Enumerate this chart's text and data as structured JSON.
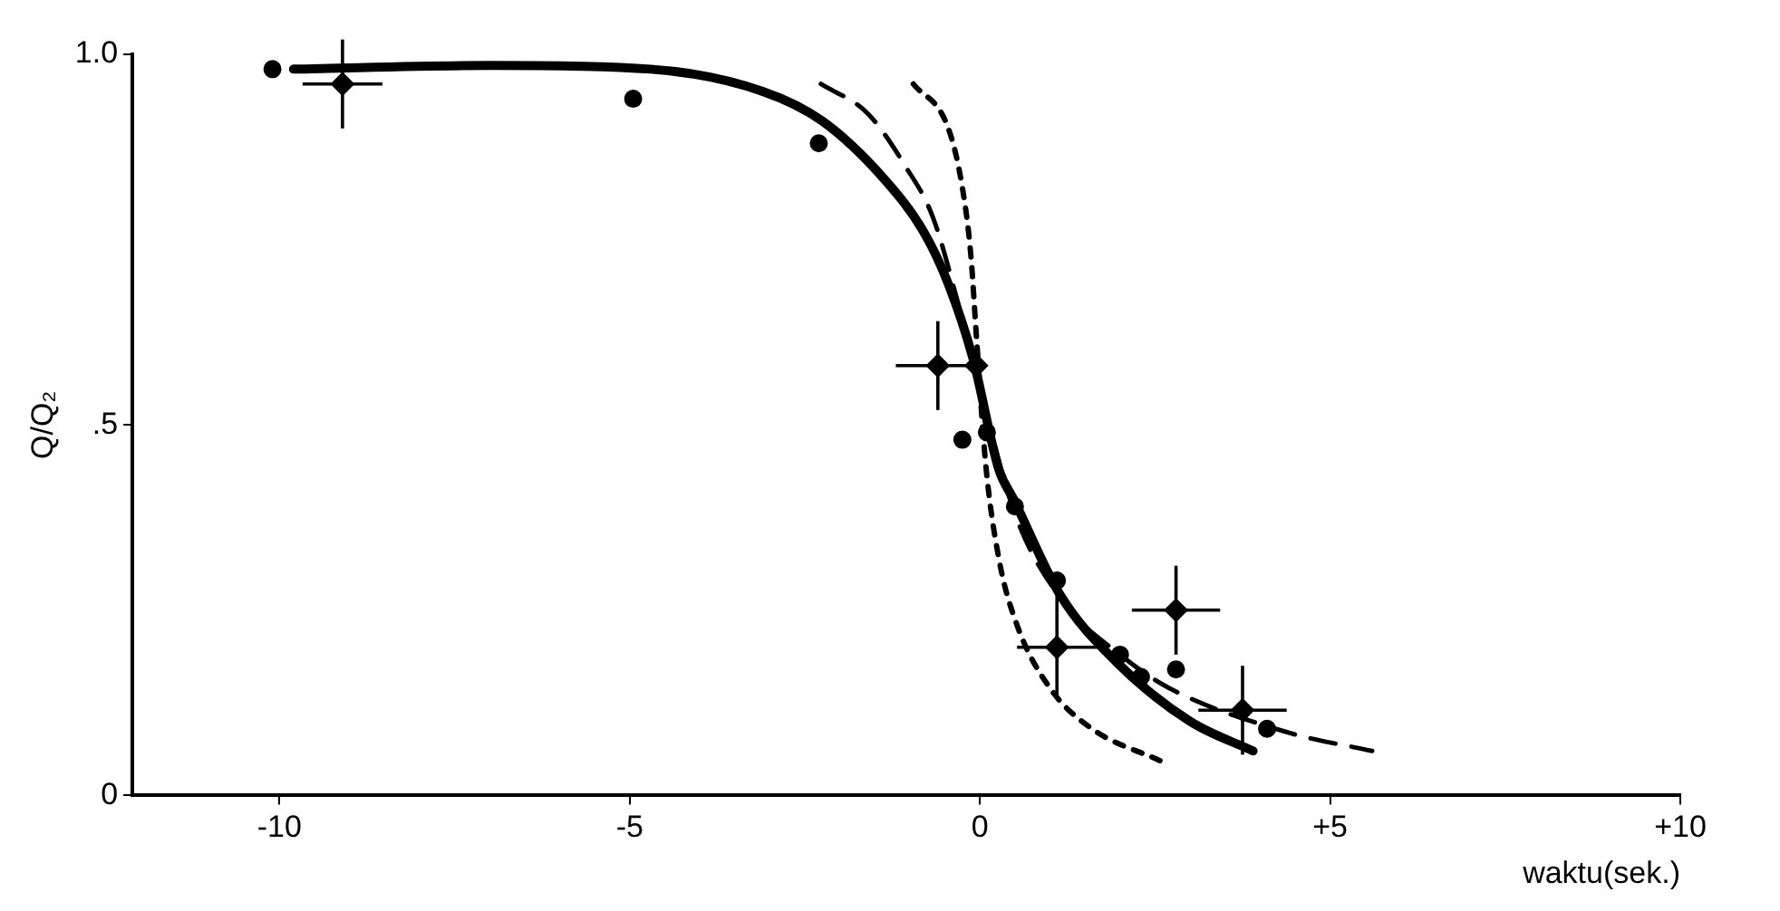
{
  "chart_data": {
    "type": "scatter",
    "xlabel": "waktu(sek.)",
    "ylabel": "Q/Q₂",
    "xlim": [
      -12.1,
      10
    ],
    "ylim": [
      0,
      1.0
    ],
    "xticks": [
      -10,
      -5,
      0,
      {
        "value": 5,
        "label": "+5"
      },
      {
        "value": 10,
        "label": "+10"
      }
    ],
    "yticks": [
      0,
      {
        "value": 0.5,
        "label": ".5"
      },
      {
        "value": 1,
        "label": "1.0"
      }
    ],
    "grid": false,
    "legend": false,
    "series": [
      {
        "type": "scatter",
        "color": "#000000",
        "marker": "circle",
        "x": [
          -10.1,
          -4.95,
          -2.3,
          -0.25,
          0.1,
          0.5,
          1.1,
          2.0,
          2.3,
          2.8,
          4.1
        ],
        "values": [
          0.98,
          0.94,
          0.88,
          0.48,
          0.49,
          0.39,
          0.29,
          0.19,
          0.16,
          0.17,
          0.09
        ]
      },
      {
        "type": "scatter",
        "color": "#000000",
        "marker": "diamond",
        "x": [
          -9.1,
          -0.6,
          -0.05,
          1.1,
          2.8,
          3.75
        ],
        "values": [
          0.96,
          0.58,
          0.58,
          0.2,
          0.25,
          0.115
        ],
        "errors": [
          0.06,
          0.06,
          null,
          0.07,
          0.06,
          0.06
        ],
        "xerrors": [
          0.57,
          0.6,
          null,
          0.57,
          0.63,
          0.63
        ]
      },
      {
        "type": "line",
        "color": "#000000",
        "line_style": "solid",
        "marker": "none",
        "x": [
          -9.8,
          -7,
          -4.7,
          -3.1,
          -2.25,
          -1.35,
          -0.8,
          -0.45,
          -0.1,
          0.27,
          0.48,
          1.15,
          1.95,
          3.0,
          3.9
        ],
        "values": [
          0.98,
          0.985,
          0.98,
          0.95,
          0.91,
          0.83,
          0.76,
          0.69,
          0.59,
          0.44,
          0.4,
          0.27,
          0.18,
          0.1,
          0.06
        ]
      },
      {
        "type": "line",
        "color": "#000000",
        "line_style": "dashed",
        "marker": "none",
        "x": [
          -2.27,
          -1.6,
          -1.07,
          -0.67,
          -0.3,
          0,
          0.5,
          1.2,
          2.0,
          2.7,
          4.4,
          5.6
        ],
        "values": [
          0.96,
          0.92,
          0.85,
          0.78,
          0.66,
          0.55,
          0.38,
          0.26,
          0.19,
          0.145,
          0.085,
          0.06
        ]
      },
      {
        "type": "line",
        "color": "#000000",
        "line_style": "dotted",
        "marker": "none",
        "x": [
          -0.95,
          -0.45,
          -0.25,
          -0.13,
          -0.05,
          0.08,
          0.27,
          0.53,
          1.0,
          1.6,
          2.57
        ],
        "values": [
          0.96,
          0.9,
          0.82,
          0.73,
          0.62,
          0.45,
          0.32,
          0.23,
          0.145,
          0.09,
          0.047
        ]
      }
    ]
  }
}
